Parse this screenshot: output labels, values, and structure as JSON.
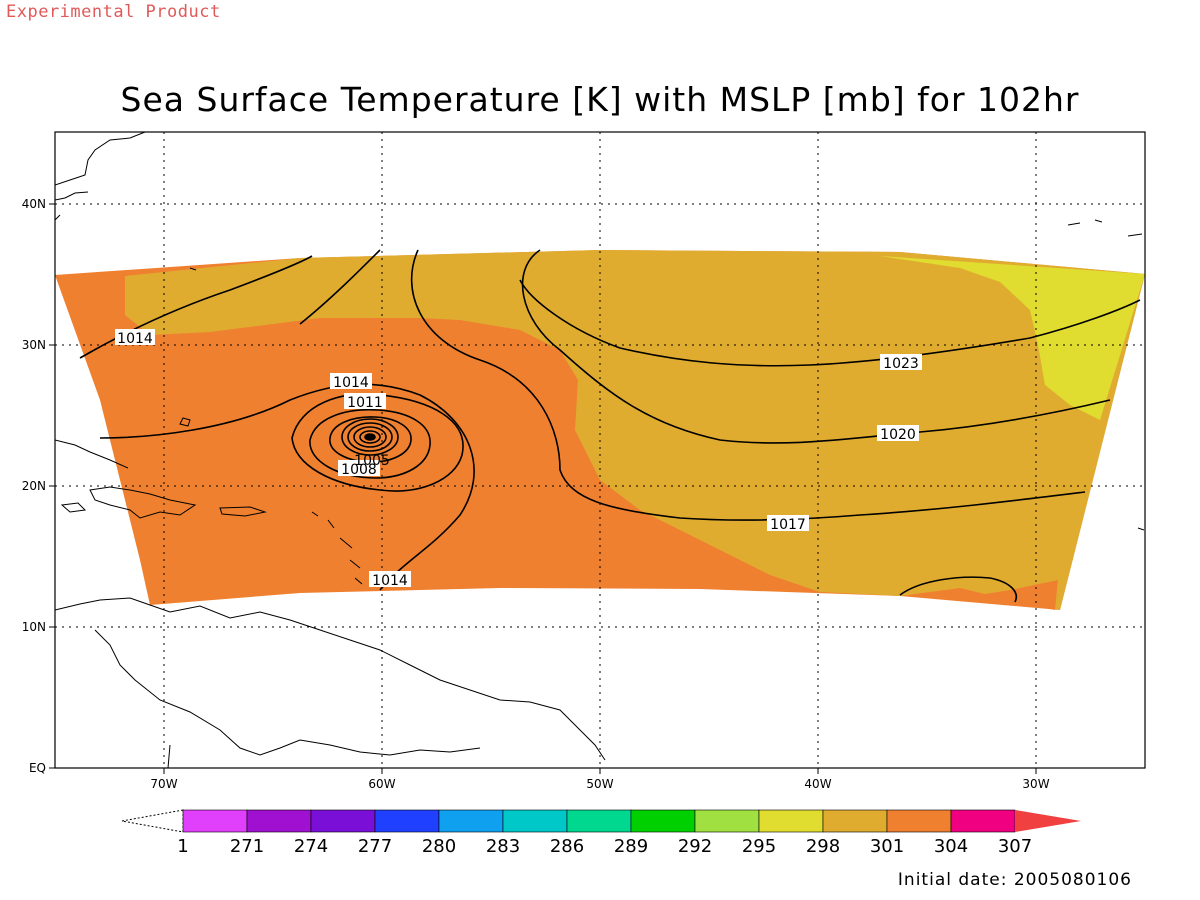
{
  "watermark": "Experimental Product",
  "title": "Sea Surface Temperature [K] with MSLP [mb] for 102hr",
  "initial_date": "Initial date: 2005080106",
  "map": {
    "lon_range": [
      -75,
      -25
    ],
    "lat_range": [
      0,
      45
    ],
    "x_ticks": [
      {
        "lon": -70,
        "label": "70W"
      },
      {
        "lon": -60,
        "label": "60W"
      },
      {
        "lon": -50,
        "label": "50W"
      },
      {
        "lon": -40,
        "label": "40W"
      },
      {
        "lon": -30,
        "label": "30W"
      }
    ],
    "y_ticks": [
      {
        "lat": 0,
        "label": "EQ"
      },
      {
        "lat": 10,
        "label": "10N"
      },
      {
        "lat": 20,
        "label": "20N"
      },
      {
        "lat": 30,
        "label": "30N"
      },
      {
        "lat": 40,
        "label": "40N"
      }
    ],
    "grid": "dotted"
  },
  "colorbar": {
    "labels": [
      "1",
      "271",
      "274",
      "277",
      "280",
      "283",
      "286",
      "289",
      "292",
      "295",
      "298",
      "301",
      "304",
      "307"
    ],
    "colors": [
      "#e040fb",
      "#a010d0",
      "#7a10d8",
      "#2040ff",
      "#10a0f0",
      "#00c8c8",
      "#00d890",
      "#00d000",
      "#a0e040",
      "#e0dc30",
      "#e0ac30",
      "#ef8030",
      "#f00080",
      "#f04040"
    ],
    "under_color": "#ffffff"
  },
  "contour_labels": [
    {
      "id": "c1014-w",
      "text": "1014"
    },
    {
      "id": "c1014-n",
      "text": "1014"
    },
    {
      "id": "c1011",
      "text": "1011"
    },
    {
      "id": "c1008",
      "text": "1008"
    },
    {
      "id": "c1005",
      "text": "1005"
    },
    {
      "id": "c1014-s",
      "text": "1014"
    },
    {
      "id": "c1023",
      "text": "1023"
    },
    {
      "id": "c1020",
      "text": "1020"
    },
    {
      "id": "c1017",
      "text": "1017"
    }
  ]
}
